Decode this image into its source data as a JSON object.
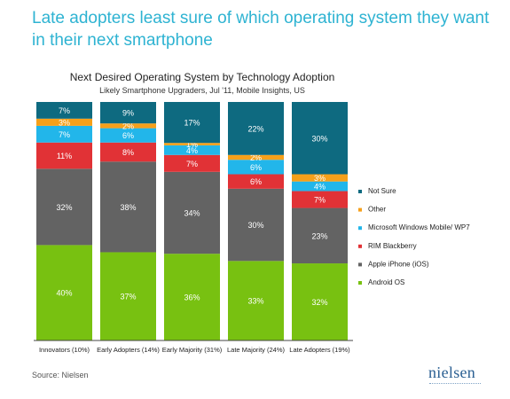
{
  "headline": "Late adopters least sure of which operating system they want in their next smartphone",
  "source": "Source: Nielsen",
  "logo_text": "nielsen",
  "colors": {
    "accent": "#2eb3d2",
    "Not Sure": "#0e6a80",
    "Other": "#f6a01a",
    "Microsoft Windows Mobile/ WP7": "#22b6ea",
    "RIM Blackberry": "#e13236",
    "Apple iPhone (iOS)": "#636363",
    "Android OS": "#78c111"
  },
  "chart_data": {
    "type": "bar",
    "stacked": true,
    "title": "Next Desired Operating System by Technology Adoption",
    "subtitle": "Likely Smartphone Upgraders, Jul '11, Mobile Insights, US",
    "categories": [
      "Innovators (10%)",
      "Early Adopters (14%)",
      "Early Majority (31%)",
      "Late Majority (24%)",
      "Late Adopters (19%)"
    ],
    "series": [
      {
        "name": "Android OS",
        "values": [
          40,
          37,
          36,
          33,
          32
        ]
      },
      {
        "name": "Apple iPhone (iOS)",
        "values": [
          32,
          38,
          34,
          30,
          23
        ]
      },
      {
        "name": "RIM Blackberry",
        "values": [
          11,
          8,
          7,
          6,
          7
        ]
      },
      {
        "name": "Microsoft Windows Mobile/ WP7",
        "values": [
          7,
          6,
          4,
          6,
          4
        ]
      },
      {
        "name": "Other",
        "values": [
          3,
          2,
          1,
          2,
          3
        ]
      },
      {
        "name": "Not Sure",
        "values": [
          7,
          9,
          17,
          22,
          30
        ]
      }
    ],
    "legend_order": [
      "Not Sure",
      "Other",
      "Microsoft Windows Mobile/ WP7",
      "RIM Blackberry",
      "Apple iPhone (iOS)",
      "Android OS"
    ],
    "legend_position": "right",
    "value_suffix": "%",
    "ylim": [
      0,
      100
    ],
    "grid": false
  }
}
